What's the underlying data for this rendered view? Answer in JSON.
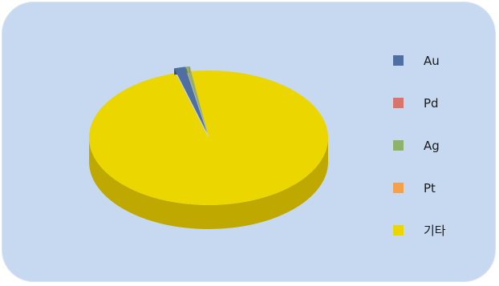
{
  "chart_data": {
    "type": "pie",
    "style": "3d",
    "title": "",
    "legend_position": "right",
    "slices": [
      {
        "label": "Au",
        "value": 1.5,
        "color": "#4f6fa3"
      },
      {
        "label": "Pd",
        "value": 0.05,
        "color": "#d9746c"
      },
      {
        "label": "Ag",
        "value": 0.5,
        "color": "#8db36a"
      },
      {
        "label": "Pt",
        "value": 0.05,
        "color": "#f5a04a"
      },
      {
        "label": "기타",
        "value": 97.9,
        "color": "#ecd600"
      }
    ]
  },
  "colors": {
    "panel_background": "#c6d9f1",
    "pie_side_main": "#bfa800"
  }
}
